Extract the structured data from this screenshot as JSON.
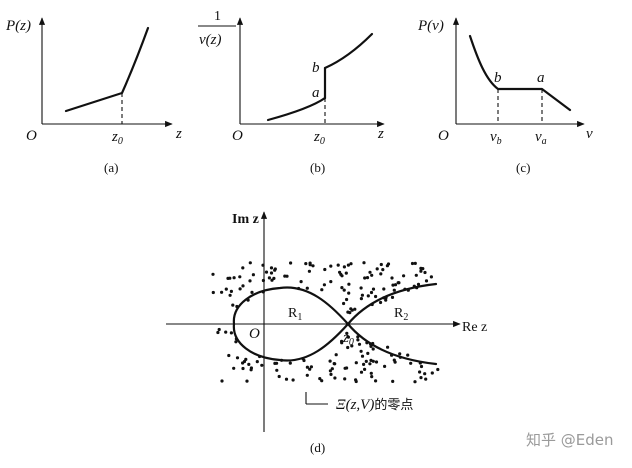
{
  "panel_a": {
    "ylabel": "P(z)",
    "xlabel": "z",
    "origin": "O",
    "tick": "z",
    "tick_sub": "0",
    "caption": "(a)"
  },
  "panel_b": {
    "ylabel_num": "1",
    "ylabel_den": "v(z)",
    "xlabel": "z",
    "origin": "O",
    "tick": "z",
    "tick_sub": "0",
    "point_a": "a",
    "point_b": "b",
    "caption": "(b)"
  },
  "panel_c": {
    "ylabel": "P(v)",
    "xlabel": "v",
    "origin": "O",
    "tick_b": "v",
    "tick_b_sub": "b",
    "tick_a": "v",
    "tick_a_sub": "a",
    "point_a": "a",
    "point_b": "b",
    "caption": "(c)"
  },
  "panel_d": {
    "ylabel": "Im z",
    "xlabel": "Re z",
    "origin": "O",
    "region1": "R",
    "region1_sub": "1",
    "region2": "R",
    "region2_sub": "2",
    "point": "z",
    "point_sub": "0",
    "zeros_label_math": "Ξ(z,V)",
    "zeros_label_cn": "的零点",
    "caption": "(d)"
  },
  "watermark": "知乎 @Eden"
}
